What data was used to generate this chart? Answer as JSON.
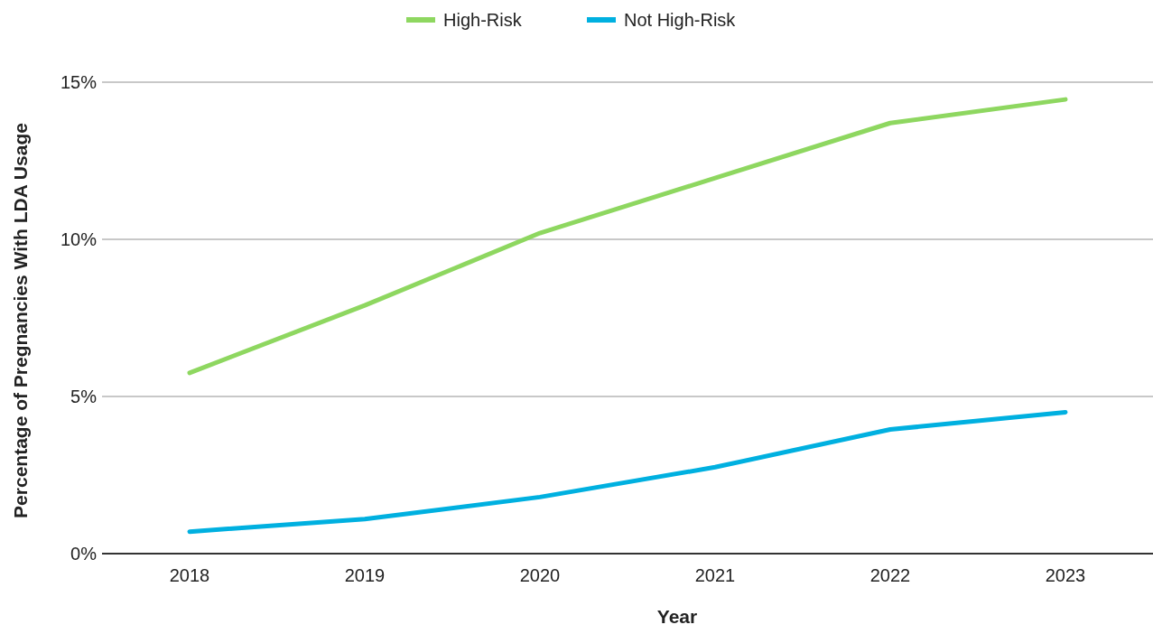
{
  "chart_data": {
    "type": "line",
    "xlabel": "Year",
    "ylabel": "Percentage of Pregnancies With LDA Usage",
    "categories": [
      "2018",
      "2019",
      "2020",
      "2021",
      "2022",
      "2023"
    ],
    "series": [
      {
        "name": "High-Risk",
        "color": "#8ed760",
        "values": [
          5.75,
          7.9,
          10.2,
          11.95,
          13.7,
          14.45
        ]
      },
      {
        "name": "Not High-Risk",
        "color": "#00b0e0",
        "values": [
          0.7,
          1.1,
          1.8,
          2.75,
          3.95,
          4.5
        ]
      }
    ],
    "ylim": [
      0,
      15
    ],
    "yticks": [
      {
        "value": 0,
        "label": "0%"
      },
      {
        "value": 5,
        "label": "5%"
      },
      {
        "value": 10,
        "label": "10%"
      },
      {
        "value": 15,
        "label": "15%"
      }
    ],
    "grid": "y",
    "legend": "top",
    "marker": "none",
    "line_style": "solid"
  }
}
